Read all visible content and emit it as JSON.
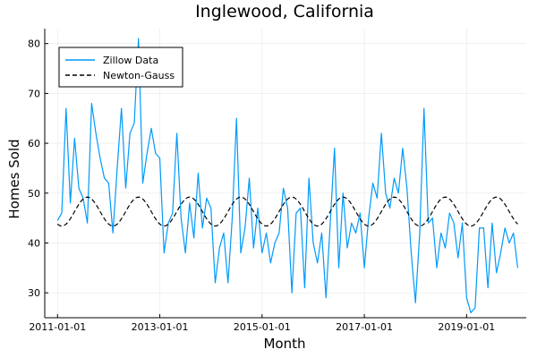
{
  "chart_data": {
    "type": "line",
    "title": "Inglewood, California",
    "xlabel": "Month",
    "ylabel": "Homes Sold",
    "x_start": "2011-01-01",
    "x_step": "month",
    "xlim": [
      "2010-10-01",
      "2020-03-01"
    ],
    "ylim": [
      25,
      83
    ],
    "x_ticks": [
      "2011-01-01",
      "2013-01-01",
      "2015-01-01",
      "2017-01-01",
      "2019-01-01"
    ],
    "y_ticks": [
      30,
      40,
      50,
      60,
      70,
      80
    ],
    "grid": true,
    "legend_position": "top-left",
    "series": [
      {
        "name": "Zillow Data",
        "color": "#009AFA",
        "style": "solid",
        "values": [
          44.5,
          46,
          67,
          48,
          61,
          51,
          49,
          44,
          68,
          62,
          57,
          53,
          52,
          42,
          55,
          67,
          51,
          62,
          64,
          81,
          52,
          58,
          63,
          58,
          57,
          38,
          44,
          46,
          62,
          45,
          38,
          48,
          41,
          54,
          43,
          49,
          47,
          32,
          39,
          42,
          32,
          45,
          65,
          38,
          43,
          53,
          39,
          47,
          38,
          42,
          36,
          40,
          42,
          51,
          47,
          30,
          46,
          47,
          31,
          53,
          40,
          36,
          42,
          29,
          44,
          59,
          35,
          50,
          39,
          44,
          42,
          46,
          35,
          45,
          52,
          49,
          62,
          50,
          47,
          53,
          50,
          59,
          51,
          38,
          28,
          42,
          67,
          44,
          45,
          35,
          42,
          39,
          46,
          44,
          37,
          44,
          29,
          26,
          27,
          43,
          43,
          31,
          44,
          34,
          38,
          43,
          40,
          42,
          35
        ]
      },
      {
        "name": "Newton-Gauss",
        "color": "#000000",
        "style": "dashed",
        "model": {
          "mean": 46.3,
          "amplitude": 2.9,
          "period_months": 12,
          "peak_month_offset": 7
        }
      }
    ]
  }
}
